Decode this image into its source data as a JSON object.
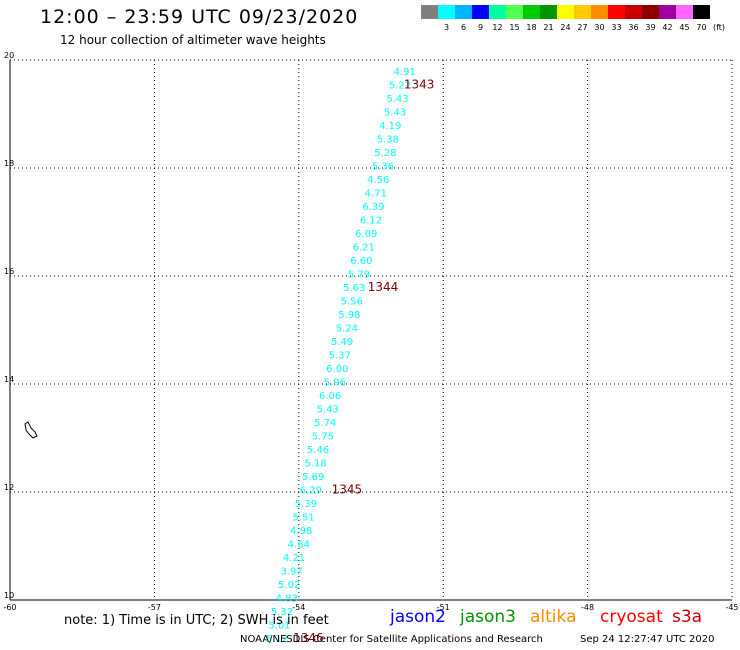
{
  "header": {
    "title": "12:00 – 23:59 UTC 09/23/2020",
    "subtitle": "12 hour collection of altimeter wave heights"
  },
  "legend": {
    "unit": "(ft)",
    "items": [
      {
        "label": "",
        "color": "#7f7f7f"
      },
      {
        "label": "3",
        "color": "#00ffff"
      },
      {
        "label": "6",
        "color": "#00b4ff"
      },
      {
        "label": "9",
        "color": "#0000ff"
      },
      {
        "label": "12",
        "color": "#00ffa0"
      },
      {
        "label": "15",
        "color": "#50ff50"
      },
      {
        "label": "18",
        "color": "#00cc00"
      },
      {
        "label": "21",
        "color": "#009600"
      },
      {
        "label": "24",
        "color": "#ffff00"
      },
      {
        "label": "27",
        "color": "#ffc800"
      },
      {
        "label": "30",
        "color": "#ff8c00"
      },
      {
        "label": "33",
        "color": "#ff0000"
      },
      {
        "label": "36",
        "color": "#c80000"
      },
      {
        "label": "39",
        "color": "#8c0000"
      },
      {
        "label": "42",
        "color": "#a000a0"
      },
      {
        "label": "45",
        "color": "#ff64ff"
      },
      {
        "label": "70",
        "color": "#000000"
      }
    ]
  },
  "colors": {
    "data_label": "#00ffff",
    "pass_label": "#7f0000",
    "grid": "#000000",
    "jason2": "#0000ff",
    "jason3": "#009600",
    "altika": "#ff8c00",
    "cryosat": "#ff0000",
    "s3a": "#c80000"
  },
  "chart_data": {
    "type": "scatter",
    "xlim": [
      -60,
      -45
    ],
    "ylim": [
      10,
      20
    ],
    "x_ticks": [
      "-60",
      "-57",
      "-54",
      "-51",
      "-48",
      "-45"
    ],
    "y_ticks": [
      "10",
      "12",
      "14",
      "16",
      "18",
      "20"
    ],
    "grid": true,
    "points": [
      {
        "x": -51.8,
        "y": 19.8,
        "v": "4.91"
      },
      {
        "x": -51.9,
        "y": 19.55,
        "v": "5.22"
      },
      {
        "x": -51.95,
        "y": 19.3,
        "v": "5.43"
      },
      {
        "x": -52.0,
        "y": 19.05,
        "v": "5.43"
      },
      {
        "x": -52.1,
        "y": 18.8,
        "v": "4.19"
      },
      {
        "x": -52.15,
        "y": 18.55,
        "v": "5.38"
      },
      {
        "x": -52.2,
        "y": 18.3,
        "v": "5.28"
      },
      {
        "x": -52.25,
        "y": 18.05,
        "v": "5.36"
      },
      {
        "x": -52.35,
        "y": 17.8,
        "v": "4.56"
      },
      {
        "x": -52.4,
        "y": 17.55,
        "v": "4.71"
      },
      {
        "x": -52.45,
        "y": 17.3,
        "v": "6.39"
      },
      {
        "x": -52.5,
        "y": 17.05,
        "v": "6.12"
      },
      {
        "x": -52.6,
        "y": 16.8,
        "v": "6.09"
      },
      {
        "x": -52.65,
        "y": 16.55,
        "v": "6.21"
      },
      {
        "x": -52.7,
        "y": 16.3,
        "v": "6.60"
      },
      {
        "x": -52.75,
        "y": 16.05,
        "v": "5.79"
      },
      {
        "x": -52.85,
        "y": 15.8,
        "v": "5.63"
      },
      {
        "x": -52.9,
        "y": 15.55,
        "v": "5.56"
      },
      {
        "x": -52.95,
        "y": 15.3,
        "v": "5.98"
      },
      {
        "x": -53.0,
        "y": 15.05,
        "v": "5.24"
      },
      {
        "x": -53.1,
        "y": 14.8,
        "v": "5.49"
      },
      {
        "x": -53.15,
        "y": 14.55,
        "v": "5.37"
      },
      {
        "x": -53.2,
        "y": 14.3,
        "v": "6.00"
      },
      {
        "x": -53.25,
        "y": 14.05,
        "v": "5.96"
      },
      {
        "x": -53.35,
        "y": 13.8,
        "v": "6.06"
      },
      {
        "x": -53.4,
        "y": 13.55,
        "v": "5.43"
      },
      {
        "x": -53.45,
        "y": 13.3,
        "v": "5.74"
      },
      {
        "x": -53.5,
        "y": 13.05,
        "v": "5.75"
      },
      {
        "x": -53.6,
        "y": 12.8,
        "v": "5.46"
      },
      {
        "x": -53.65,
        "y": 12.55,
        "v": "5.18"
      },
      {
        "x": -53.7,
        "y": 12.3,
        "v": "5.69"
      },
      {
        "x": -53.75,
        "y": 12.05,
        "v": "6.29"
      },
      {
        "x": -53.85,
        "y": 11.8,
        "v": "5.39"
      },
      {
        "x": -53.9,
        "y": 11.55,
        "v": "5.51"
      },
      {
        "x": -53.95,
        "y": 11.3,
        "v": "4.98"
      },
      {
        "x": -54.0,
        "y": 11.05,
        "v": "4.64"
      },
      {
        "x": -54.1,
        "y": 10.8,
        "v": "4.21"
      },
      {
        "x": -54.15,
        "y": 10.55,
        "v": "3.97"
      },
      {
        "x": -54.2,
        "y": 10.3,
        "v": "5.02"
      },
      {
        "x": -54.25,
        "y": 10.05,
        "v": "4.83"
      },
      {
        "x": -54.35,
        "y": 9.8,
        "v": "5.32"
      },
      {
        "x": -54.4,
        "y": 9.55,
        "v": "5.01"
      },
      {
        "x": -54.45,
        "y": 9.3,
        "v": "5.12"
      }
    ],
    "pass_labels": [
      {
        "x": -51.5,
        "y": 19.55,
        "label": "1343"
      },
      {
        "x": -52.25,
        "y": 15.8,
        "label": "1344"
      },
      {
        "x": -53.0,
        "y": 12.05,
        "label": "1345"
      },
      {
        "x": -53.8,
        "y": 9.3,
        "label": "1346"
      }
    ],
    "annotations": []
  },
  "footer": {
    "note": "note: 1) Time is in UTC; 2) SWH is in feet",
    "satellites": [
      {
        "name": "jason2",
        "key": "jason2"
      },
      {
        "name": "jason3",
        "key": "jason3"
      },
      {
        "name": "altika",
        "key": "altika"
      },
      {
        "name": "cryosat",
        "key": "cryosat"
      },
      {
        "name": "s3a",
        "key": "s3a"
      }
    ],
    "credit": "NOAA/NESDIS Center for Satellite Applications and Research",
    "timestamp": "Sep 24 12:27:47 UTC 2020"
  }
}
